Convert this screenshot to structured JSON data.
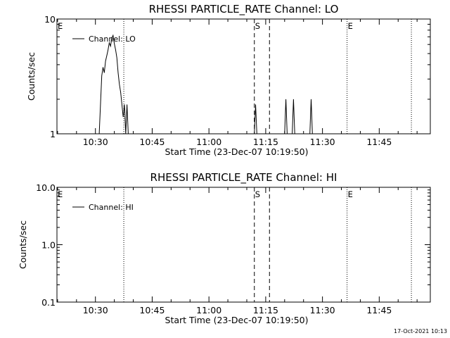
{
  "chart_data": [
    {
      "type": "line",
      "title": "RHESSI PARTICLE_RATE Channel: LO",
      "xlabel": "Start Time (23-Dec-07 10:19:50)",
      "ylabel": "Counts/sec",
      "y_scale": "log",
      "ylim": [
        1,
        10
      ],
      "y_ticks": [
        "1",
        "10"
      ],
      "x_ticks": [
        "10:30",
        "10:45",
        "11:00",
        "11:15",
        "11:30",
        "11:45"
      ],
      "xlim": [
        "10:19:50",
        "11:58:30"
      ],
      "legend": {
        "placement": "top-left",
        "entries": [
          "Channel: LO"
        ]
      },
      "grid": false,
      "series": [
        {
          "name": "Channel: LO",
          "x": [
            "10:19:50",
            "10:31:00",
            "10:31:40",
            "10:32:00",
            "10:32:20",
            "10:32:40",
            "10:33:00",
            "10:33:20",
            "10:33:40",
            "10:34:00",
            "10:34:20",
            "10:34:40",
            "10:35:00",
            "10:35:20",
            "10:35:40",
            "10:36:00",
            "10:36:20",
            "10:36:40",
            "10:37:00",
            "10:37:20",
            "10:37:40",
            "10:38:00",
            "10:38:20",
            "10:38:40",
            "10:39:00",
            "10:39:40",
            "10:40:00",
            "11:12:00",
            "11:12:20",
            "11:12:40",
            "11:20:00",
            "11:20:20",
            "11:20:40",
            "11:22:00",
            "11:22:20",
            "11:22:40",
            "11:26:40",
            "11:27:00",
            "11:27:20",
            "11:58:30"
          ],
          "y": [
            1,
            1,
            3.2,
            3.8,
            3.4,
            4.3,
            4.8,
            5.4,
            6.2,
            5.8,
            6.8,
            7.2,
            6.1,
            5.4,
            4.6,
            3.4,
            2.7,
            2.3,
            1.8,
            1.4,
            1.8,
            1,
            1.8,
            1,
            1,
            1,
            1,
            1,
            1.8,
            1,
            1,
            2,
            1,
            1,
            2,
            1,
            1,
            2,
            1,
            1
          ]
        }
      ],
      "annotations": [
        {
          "label": "E",
          "time": "10:19:50",
          "style": "none"
        },
        {
          "label": "",
          "time": "10:37:30",
          "style": "dotted"
        },
        {
          "label": "S",
          "time": "11:12:00",
          "style": "dashed"
        },
        {
          "label": "",
          "time": "11:16:00",
          "style": "dashed"
        },
        {
          "label": "E",
          "time": "11:36:30",
          "style": "dotted"
        },
        {
          "label": "",
          "time": "11:53:30",
          "style": "dotted"
        }
      ]
    },
    {
      "type": "line",
      "title": "RHESSI PARTICLE_RATE Channel: HI",
      "xlabel": "Start Time (23-Dec-07 10:19:50)",
      "ylabel": "Counts/sec",
      "y_scale": "log",
      "ylim": [
        0.1,
        10
      ],
      "y_ticks": [
        "0.1",
        "1.0",
        "10.0"
      ],
      "x_ticks": [
        "10:30",
        "10:45",
        "11:00",
        "11:15",
        "11:30",
        "11:45"
      ],
      "xlim": [
        "10:19:50",
        "11:58:30"
      ],
      "legend": {
        "placement": "top-left",
        "entries": [
          "Channel: HI"
        ]
      },
      "grid": false,
      "series": [
        {
          "name": "Channel: HI",
          "x": [],
          "y": []
        }
      ],
      "annotations": [
        {
          "label": "E",
          "time": "10:19:50",
          "style": "none"
        },
        {
          "label": "",
          "time": "10:37:30",
          "style": "dotted"
        },
        {
          "label": "S",
          "time": "11:12:00",
          "style": "dashed"
        },
        {
          "label": "",
          "time": "11:16:00",
          "style": "dashed"
        },
        {
          "label": "E",
          "time": "11:36:30",
          "style": "dotted"
        },
        {
          "label": "",
          "time": "11:53:30",
          "style": "dotted"
        }
      ]
    }
  ],
  "footer": {
    "timestamp": "17-Oct-2021 10:13"
  }
}
